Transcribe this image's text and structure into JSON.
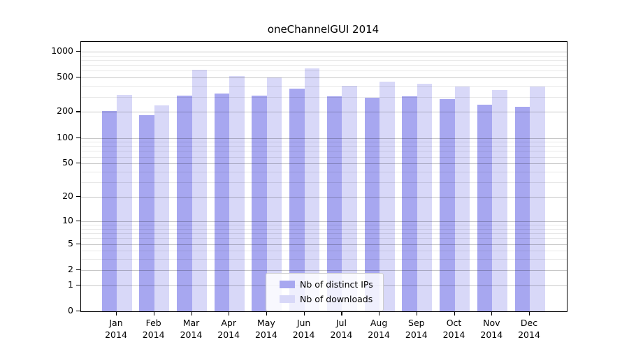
{
  "title": "oneChannelGUI 2014",
  "legend": {
    "items": [
      {
        "label": "Nb of distinct IPs",
        "color": "#a7a7f0"
      },
      {
        "label": "Nb of downloads",
        "color": "#d8d8f8"
      }
    ]
  },
  "colors": {
    "bar_distinct_ips": "#a7a7f0",
    "bar_downloads": "#d8d8f8",
    "major_grid": "rgba(0,0,0,0.22)",
    "minor_grid": "rgba(0,0,0,0.09)",
    "axis": "#000000",
    "background": "#ffffff"
  },
  "chart_data": {
    "type": "bar",
    "title": "oneChannelGUI 2014",
    "categories": [
      "Jan 2014",
      "Feb 2014",
      "Mar 2014",
      "Apr 2014",
      "May 2014",
      "Jun 2014",
      "Jul 2014",
      "Aug 2014",
      "Sep 2014",
      "Oct 2014",
      "Nov 2014",
      "Dec 2014"
    ],
    "month_labels": [
      "Jan",
      "Feb",
      "Mar",
      "Apr",
      "May",
      "Jun",
      "Jul",
      "Aug",
      "Sep",
      "Oct",
      "Nov",
      "Dec"
    ],
    "year_label": "2014",
    "series": [
      {
        "name": "Nb of distinct IPs",
        "color": "#a7a7f0",
        "values": [
          207,
          185,
          310,
          330,
          310,
          375,
          302,
          292,
          303,
          283,
          245,
          228
        ]
      },
      {
        "name": "Nb of downloads",
        "color": "#d8d8f8",
        "values": [
          316,
          240,
          620,
          525,
          505,
          635,
          405,
          450,
          425,
          397,
          360,
          392
        ]
      }
    ],
    "xlabel": "",
    "ylabel": "",
    "yscale": "log10(value+1)",
    "y_ticks": [
      0,
      1,
      2,
      5,
      10,
      20,
      50,
      100,
      200,
      500,
      1000
    ],
    "y_minor_ticks": [
      3,
      4,
      6,
      7,
      8,
      9,
      30,
      40,
      60,
      70,
      80,
      90,
      300,
      400,
      600,
      700,
      800,
      900
    ],
    "ylim": [
      0,
      1300
    ],
    "grid": "horizontal major+minor, drawn over bars",
    "legend_position": "inside lower-center"
  }
}
